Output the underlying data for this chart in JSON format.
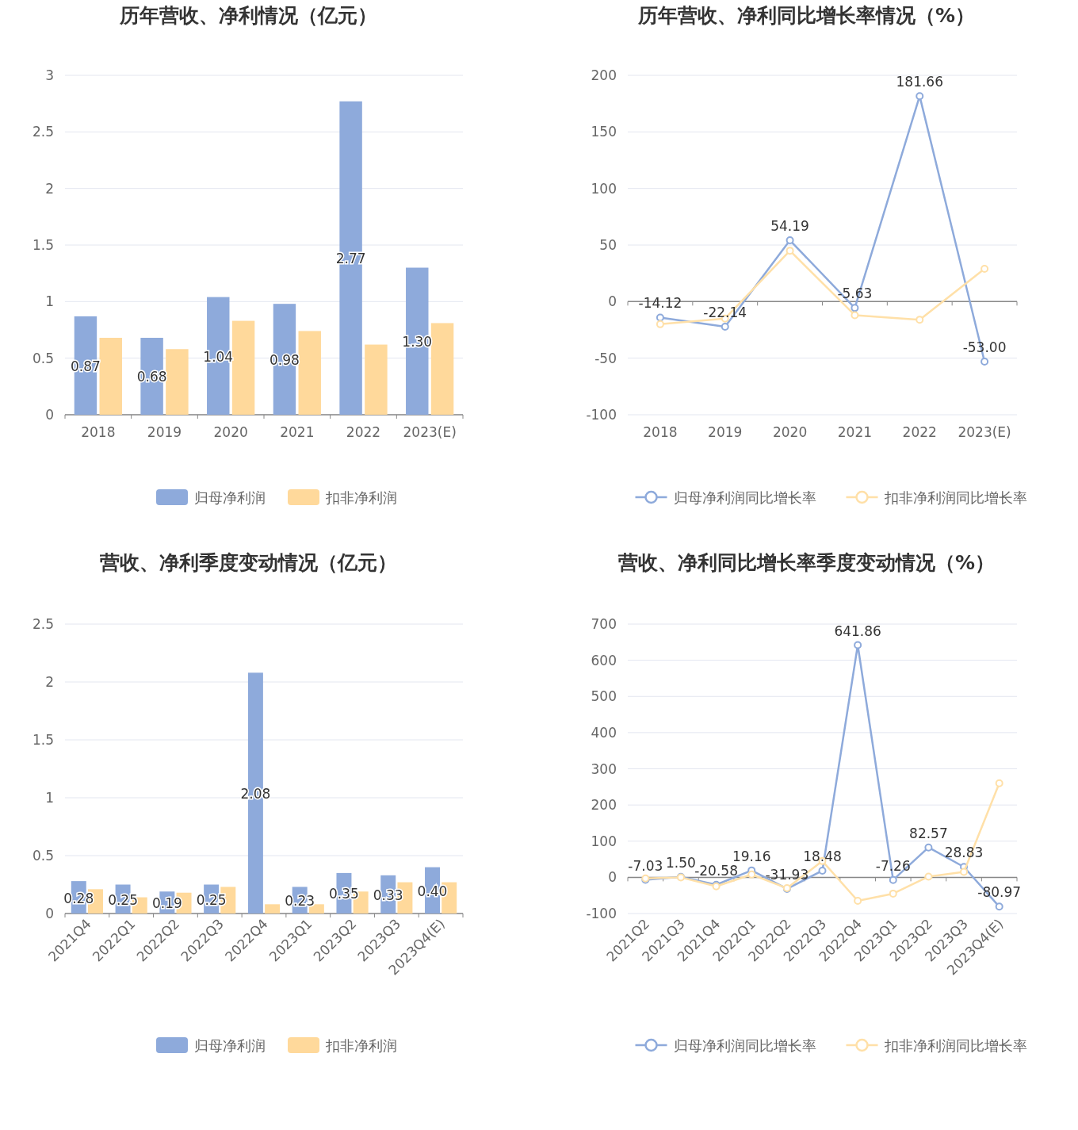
{
  "chart_data": [
    {
      "type": "bar",
      "title": "历年营收、净利情况（亿元）",
      "categories": [
        "2018",
        "2019",
        "2020",
        "2021",
        "2022",
        "2023(E)"
      ],
      "ylim": [
        0,
        3
      ],
      "yticks": [
        0,
        0.5,
        1,
        1.5,
        2,
        2.5,
        3
      ],
      "grid": "y",
      "legend": "bottom",
      "series": [
        {
          "name": "归母净利润",
          "color": "#8eaadb",
          "values": [
            0.87,
            0.68,
            1.04,
            0.98,
            2.77,
            1.3
          ],
          "value_labels": [
            "0.87",
            "0.68",
            "1.04",
            "0.98",
            "2.77",
            "1.30"
          ]
        },
        {
          "name": "扣非净利润",
          "color": "#ffd99b",
          "values": [
            0.68,
            0.58,
            0.83,
            0.74,
            0.62,
            0.81
          ]
        }
      ]
    },
    {
      "type": "line",
      "title": "历年营收、净利同比增长率情况（%）",
      "categories": [
        "2018",
        "2019",
        "2020",
        "2021",
        "2022",
        "2023(E)"
      ],
      "ylim": [
        -100,
        200
      ],
      "yticks": [
        -100,
        -50,
        0,
        50,
        100,
        150,
        200
      ],
      "grid": "y",
      "legend": "bottom",
      "marker": "circle",
      "series": [
        {
          "name": "归母净利润同比增长率",
          "color": "#8eaadb",
          "values": [
            -14.12,
            -22.14,
            54.19,
            -5.63,
            181.66,
            -53.0
          ],
          "value_labels": [
            "-14.12",
            "-22.14",
            "54.19",
            "-5.63",
            "181.66",
            "-53.00"
          ]
        },
        {
          "name": "扣非净利润同比增长率",
          "color": "#ffe0a8",
          "values": [
            -20,
            -15,
            45,
            -12,
            -16,
            29
          ]
        }
      ]
    },
    {
      "type": "bar",
      "title": "营收、净利季度变动情况（亿元）",
      "categories": [
        "2021Q4",
        "2022Q1",
        "2022Q2",
        "2022Q3",
        "2022Q4",
        "2023Q1",
        "2023Q2",
        "2023Q3",
        "2023Q4(E)"
      ],
      "ylim": [
        0,
        2.5
      ],
      "yticks": [
        0,
        0.5,
        1,
        1.5,
        2,
        2.5
      ],
      "grid": "y",
      "legend": "bottom",
      "series": [
        {
          "name": "归母净利润",
          "color": "#8eaadb",
          "values": [
            0.28,
            0.25,
            0.19,
            0.25,
            2.08,
            0.23,
            0.35,
            0.33,
            0.4
          ],
          "value_labels": [
            "0.28",
            "0.25",
            "0.19",
            "0.25",
            "2.08",
            "0.23",
            "0.35",
            "0.33",
            "0.40"
          ]
        },
        {
          "name": "扣非净利润",
          "color": "#ffd99b",
          "values": [
            0.21,
            0.14,
            0.18,
            0.23,
            0.08,
            0.08,
            0.19,
            0.27,
            0.27
          ]
        }
      ]
    },
    {
      "type": "line",
      "title": "营收、净利同比增长率季度变动情况（%）",
      "categories": [
        "2021Q2",
        "2021Q3",
        "2021Q4",
        "2022Q1",
        "2022Q2",
        "2022Q3",
        "2022Q4",
        "2023Q1",
        "2023Q2",
        "2023Q3",
        "2023Q4(E)"
      ],
      "ylim": [
        -100,
        700
      ],
      "yticks": [
        -100,
        0,
        100,
        200,
        300,
        400,
        500,
        600,
        700
      ],
      "grid": "y",
      "legend": "bottom",
      "marker": "circle",
      "series": [
        {
          "name": "归母净利润同比增长率",
          "color": "#8eaadb",
          "values": [
            -7.03,
            1.5,
            -20.58,
            19.16,
            -31.93,
            18.48,
            641.86,
            -7.26,
            82.57,
            28.83,
            -80.97
          ],
          "value_labels": [
            "-7.03",
            "1.50",
            "-20.58",
            "19.16",
            "-31.93",
            "18.48",
            "641.86",
            "-7.26",
            "82.57",
            "28.83",
            "-80.97"
          ]
        },
        {
          "name": "扣非净利润同比增长率",
          "color": "#ffe0a8",
          "values": [
            -3,
            0,
            -25,
            8,
            -30,
            45,
            -65,
            -45,
            2,
            15,
            260
          ]
        }
      ]
    }
  ]
}
